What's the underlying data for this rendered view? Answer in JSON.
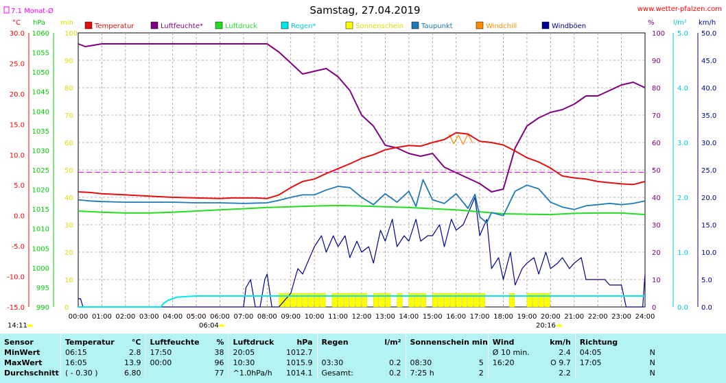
{
  "header": {
    "title": "Samstag, 27.04.2019",
    "site": "www.wetter-pfalzen.com",
    "monthly_avg_label": "7.1 Monat-Ø"
  },
  "axes": {
    "temp_unit": "°C",
    "press_unit": "hPa",
    "min_unit": "min",
    "pct_unit": "%",
    "rain_unit": "l/m²",
    "wind_unit": "km/h"
  },
  "time_labels": {
    "sunrise": "06:04",
    "sunset": "20:16",
    "current": "14:11"
  },
  "chart_data": {
    "type": "line",
    "title": "Samstag, 27.04.2019",
    "x_ticks": [
      "00:00",
      "01:00",
      "02:00",
      "03:00",
      "04:00",
      "05:00",
      "06:00",
      "07:00",
      "08:00",
      "09:00",
      "10:00",
      "11:00",
      "12:00",
      "13:00",
      "14:00",
      "15:00",
      "16:00",
      "17:00",
      "18:00",
      "19:00",
      "20:00",
      "21:00",
      "22:00",
      "23:00",
      "24:00"
    ],
    "xlim": [
      0,
      24
    ],
    "axes": {
      "temperature": {
        "unit": "°C",
        "lim": [
          -15,
          30
        ],
        "ticks": [
          "-15.0",
          "-10.0",
          "-5.0",
          "0.0",
          "5.0",
          "10.0",
          "15.0",
          "20.0",
          "25.0",
          "30.0"
        ]
      },
      "pressure": {
        "unit": "hPa",
        "lim": [
          990,
          1060
        ],
        "ticks": [
          "990",
          "995",
          "1000",
          "1005",
          "1010",
          "1015",
          "1020",
          "1025",
          "1030",
          "1035",
          "1040",
          "1045",
          "1050",
          "1055",
          "1060"
        ]
      },
      "minutes": {
        "unit": "min",
        "lim": [
          0,
          100
        ],
        "ticks": [
          "0",
          "10",
          "20",
          "30",
          "40",
          "50",
          "60",
          "70",
          "80",
          "90",
          "100"
        ]
      },
      "humidity": {
        "unit": "%",
        "lim": [
          0,
          100
        ],
        "ticks": [
          "0",
          "10",
          "20",
          "30",
          "40",
          "50",
          "60",
          "70",
          "80",
          "90",
          "100"
        ]
      },
      "rain": {
        "unit": "l/m²",
        "lim": [
          0,
          5
        ],
        "ticks": [
          "0.0",
          "1.0",
          "2.0",
          "3.0",
          "4.0",
          "5.0"
        ]
      },
      "wind": {
        "unit": "km/h",
        "lim": [
          0,
          50
        ],
        "ticks": [
          "0.0",
          "5.0",
          "10.0",
          "15.0",
          "20.0",
          "25.0",
          "30.0",
          "35.0",
          "40.0",
          "45.0",
          "50.0"
        ]
      }
    },
    "legend": [
      "Temperatur",
      "Luftfeuchte*",
      "Luftdruck",
      "Regen*",
      "Sonnenschein",
      "Taupunkt",
      "Windchill",
      "Windböen"
    ],
    "colors": {
      "Temperatur": "#e01010",
      "Luftfeuchte*": "#800080",
      "Luftdruck": "#22dd22",
      "Regen*": "#00e8e8",
      "Sonnenschein": "#ffff00",
      "Taupunkt": "#1e78b4",
      "Windchill": "#ff8c00",
      "Windböen": "#000090",
      "monthly_avg": "#ff00ff"
    },
    "monthly_avg_temp": 7.1,
    "series": [
      {
        "name": "Temperatur",
        "axis": "temperature",
        "x": [
          0,
          0.5,
          1,
          2,
          3,
          4,
          5,
          6,
          6.5,
          7,
          7.5,
          8,
          8.5,
          9,
          9.5,
          10,
          10.5,
          11,
          11.5,
          12,
          12.5,
          13,
          13.5,
          14,
          14.5,
          15,
          15.5,
          16,
          16.5,
          17,
          17.5,
          18,
          18.5,
          19,
          19.5,
          20,
          20.5,
          21,
          21.5,
          22,
          22.5,
          23,
          23.5,
          24
        ],
        "y": [
          3.9,
          3.8,
          3.6,
          3.4,
          3.2,
          3.0,
          2.9,
          2.8,
          2.9,
          2.9,
          2.9,
          2.8,
          3.4,
          4.6,
          5.6,
          6.0,
          6.9,
          7.7,
          8.5,
          9.4,
          10.0,
          10.8,
          11.2,
          11.5,
          11.4,
          12.0,
          12.5,
          13.6,
          13.4,
          12.2,
          12.0,
          11.6,
          10.6,
          9.5,
          8.8,
          7.8,
          6.5,
          6.2,
          6.0,
          5.6,
          5.4,
          5.2,
          5.1,
          5.6
        ]
      },
      {
        "name": "Luftfeuchte*",
        "axis": "humidity",
        "x": [
          0,
          0.3,
          1,
          2,
          3,
          4,
          5,
          6,
          7,
          7.5,
          8,
          8.5,
          9,
          9.5,
          10,
          10.5,
          11,
          11.5,
          12,
          12.5,
          13,
          13.5,
          14,
          14.5,
          15,
          15.5,
          16,
          16.5,
          17,
          17.5,
          18,
          18.5,
          19,
          19.5,
          20,
          20.5,
          21,
          21.5,
          22,
          22.5,
          23,
          23.5,
          24
        ],
        "y": [
          96,
          95,
          96,
          96,
          96,
          96,
          96,
          96,
          96,
          96,
          96,
          93,
          89,
          85,
          86,
          87,
          84,
          79,
          70,
          66,
          59,
          58,
          56,
          55,
          56,
          51,
          49,
          47,
          45,
          42,
          43,
          58,
          66,
          69,
          71,
          72,
          74,
          77,
          77,
          79,
          81,
          82,
          80
        ]
      },
      {
        "name": "Luftdruck",
        "axis": "pressure",
        "x": [
          0,
          1,
          2,
          3,
          4,
          5,
          6,
          7,
          8,
          9,
          10,
          11,
          12,
          13,
          14,
          15,
          16,
          17,
          18,
          19,
          20,
          21,
          22,
          23,
          24
        ],
        "y": [
          1014.5,
          1014.2,
          1014.0,
          1014.0,
          1014.2,
          1014.5,
          1014.8,
          1015.1,
          1015.4,
          1015.6,
          1015.8,
          1015.9,
          1015.8,
          1015.6,
          1015.4,
          1015.1,
          1014.8,
          1014.3,
          1013.8,
          1013.7,
          1013.6,
          1013.9,
          1014.0,
          1014.0,
          1013.6
        ]
      },
      {
        "name": "Regen*",
        "axis": "rain",
        "x": [
          0,
          3.5,
          3.6,
          3.8,
          4.2,
          5,
          6,
          8,
          10,
          12,
          14,
          16,
          18,
          20,
          22,
          24
        ],
        "y": [
          0,
          0,
          0.06,
          0.12,
          0.18,
          0.2,
          0.2,
          0.2,
          0.2,
          0.2,
          0.2,
          0.2,
          0.2,
          0.2,
          0.2,
          0.2
        ]
      },
      {
        "name": "Sonnenschein",
        "axis": "minutes",
        "x": [
          8.5,
          8.75,
          9,
          9.25,
          9.5,
          9.75,
          10,
          10.25,
          10.75,
          11,
          11.25,
          11.5,
          11.75,
          12,
          12.5,
          12.75,
          13,
          13.5,
          14,
          14.25,
          14.5,
          15,
          15.25,
          15.5,
          15.75,
          16,
          16.25,
          16.5,
          16.75,
          17,
          18.25,
          19,
          19.25,
          19.5,
          19.75
        ],
        "y": [
          5,
          5,
          5,
          5,
          5,
          5,
          5,
          5,
          5,
          5,
          5,
          5,
          5,
          5,
          5,
          5,
          5,
          5,
          5,
          5,
          5,
          5,
          5,
          5,
          5,
          5,
          5,
          5,
          5,
          5,
          5,
          5,
          5,
          5,
          5
        ]
      },
      {
        "name": "Taupunkt",
        "axis": "temperature",
        "x": [
          0,
          0.5,
          1,
          2,
          3,
          4,
          5,
          6,
          7,
          8,
          8.5,
          9,
          9.5,
          10,
          10.5,
          11,
          11.5,
          12,
          12.5,
          13,
          13.5,
          14,
          14.3,
          14.6,
          15,
          15.5,
          16,
          16.5,
          16.8,
          17,
          17.3,
          17.5,
          18,
          18.5,
          19,
          19.5,
          20,
          20.5,
          21,
          21.5,
          22,
          22.5,
          23,
          23.5,
          24
        ],
        "y": [
          2.6,
          2.4,
          2.3,
          2.2,
          2.2,
          2.2,
          2.1,
          2.1,
          2.0,
          2.1,
          2.5,
          3.0,
          3.4,
          3.4,
          4.2,
          4.8,
          4.6,
          3.0,
          1.8,
          3.6,
          2.2,
          4.0,
          1.5,
          5.9,
          2.6,
          2.0,
          3.6,
          1.2,
          3.5,
          -0.2,
          -1.2,
          0.5,
          0.0,
          4.0,
          5.0,
          4.4,
          2.2,
          1.4,
          1.0,
          1.6,
          1.8,
          2.0,
          1.8,
          2.0,
          2.4
        ]
      },
      {
        "name": "Windchill",
        "axis": "temperature",
        "x": [
          15.7,
          15.9,
          16.1,
          16.3,
          16.5,
          16.7
        ],
        "y": [
          13.4,
          11.8,
          13.2,
          11.7,
          13.4,
          11.9
        ]
      },
      {
        "name": "Windböen",
        "axis": "wind",
        "x": [
          0,
          0.1,
          0.2,
          0.3,
          6,
          6.3,
          6.5,
          7,
          7.1,
          7.3,
          7.5,
          7.7,
          7.9,
          8,
          8.2,
          8.5,
          9,
          9.3,
          9.5,
          9.8,
          10,
          10.3,
          10.5,
          10.8,
          11,
          11.3,
          11.5,
          11.8,
          12,
          12.3,
          12.5,
          12.8,
          13,
          13.3,
          13.5,
          13.8,
          14,
          14.3,
          14.5,
          14.8,
          15,
          15.3,
          15.5,
          15.8,
          16,
          16.3,
          16.5,
          16.8,
          17,
          17.3,
          17.5,
          17.8,
          18,
          18.3,
          18.5,
          18.8,
          19,
          19.3,
          19.5,
          19.8,
          20,
          20.3,
          20.5,
          20.8,
          21,
          21.3,
          21.5,
          21.8,
          22,
          22.3,
          22.5,
          22.8,
          23,
          23.2,
          23.5,
          23.7,
          23.9,
          24
        ],
        "y": [
          1.5,
          1.5,
          0,
          0,
          0,
          0,
          0,
          0,
          3.5,
          5,
          0,
          0,
          5,
          6,
          0,
          0,
          2.5,
          7,
          6,
          9,
          11,
          13,
          10,
          13,
          11,
          13,
          9,
          12,
          10,
          11,
          8,
          14,
          12,
          16,
          11,
          13,
          12,
          16,
          12,
          13,
          13,
          15,
          11,
          16,
          14,
          15,
          17,
          20,
          13,
          16,
          7,
          9,
          5,
          10,
          4,
          7,
          8,
          9,
          6,
          10,
          7,
          8,
          9,
          7,
          8,
          9,
          5,
          5,
          5,
          5,
          4,
          4,
          4,
          0,
          0,
          0,
          0,
          6
        ]
      }
    ]
  },
  "stats": {
    "headers": {
      "sensor": "Sensor",
      "temp": "Temperatur",
      "temp_unit": "°C",
      "hum": "Luftfeuchte",
      "hum_unit": "%",
      "press": "Luftdruck",
      "press_unit": "hPa",
      "rain": "Regen",
      "rain_unit": "l/m²",
      "sun": "Sonnenschein min",
      "wind": "Wind",
      "wind_unit": "km/h",
      "dir": "Richtung"
    },
    "rows": [
      {
        "label": "MinWert",
        "temp_time": "06:15",
        "temp_val": "2.8",
        "hum_time": "17:50",
        "hum_val": "38",
        "press_time": "20:05",
        "press_val": "1012.7",
        "rain_time": "",
        "rain_val": "",
        "sun_time": "",
        "sun_val": "",
        "wind_time": "Ø 10 min.",
        "wind_val": "2.4",
        "dir_time": "04:05",
        "dir_val": "N"
      },
      {
        "label": "MaxWert",
        "temp_time": "16:05",
        "temp_val": "13.9",
        "hum_time": "00:00",
        "hum_val": "96",
        "press_time": "10:30",
        "press_val": "1015.9",
        "rain_time": "03:30",
        "rain_val": "0.2",
        "sun_time": "08:30",
        "sun_val": "5",
        "wind_time": "16:20",
        "wind_val": "O 9.7",
        "dir_time": "17:05",
        "dir_val": "N"
      },
      {
        "label": "Durchschnitt",
        "temp_time": "( - 0.30 )",
        "temp_val": "6.80",
        "hum_time": "",
        "hum_val": "77",
        "press_time": "^1.0hPa/h",
        "press_val": "1014.1",
        "rain_time": "Gesamt:",
        "rain_val": "0.2",
        "sun_time": "7:25 h",
        "sun_val": "2",
        "wind_time": "",
        "wind_val": "2.2",
        "dir_time": "",
        "dir_val": "N"
      }
    ]
  }
}
